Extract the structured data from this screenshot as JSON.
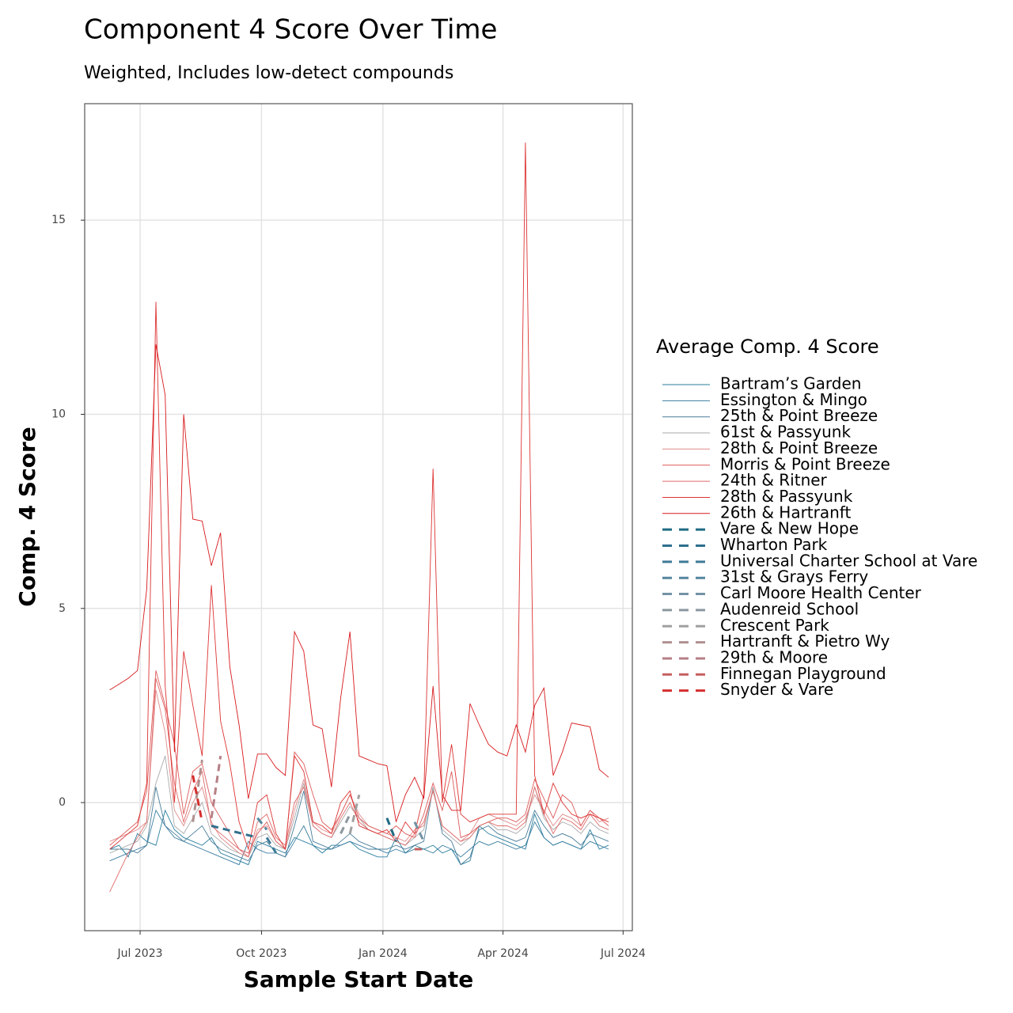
{
  "chart_data": {
    "type": "line",
    "title": "Component 4 Score Over Time",
    "subtitle": "Weighted, Includes low-detect compounds",
    "x_label": "Sample Start Date",
    "y_label": "Comp. 4 Score",
    "legend_title": "Average Comp. 4 Score",
    "legend": "right",
    "grid": true,
    "xlim": [
      "2023-05-20",
      "2024-07-08"
    ],
    "xticks": [
      {
        "value": "2023-07-01",
        "label": "Jul 2023"
      },
      {
        "value": "2023-10-01",
        "label": "Oct 2023"
      },
      {
        "value": "2024-01-01",
        "label": "Jan 2024"
      },
      {
        "value": "2024-04-01",
        "label": "Apr 2024"
      },
      {
        "value": "2024-07-01",
        "label": "Jul 2024"
      }
    ],
    "ylim": [
      -3.3,
      18
    ],
    "yticks": [
      0,
      5,
      10,
      15
    ],
    "x": [
      "2023-06-08",
      "2023-06-15",
      "2023-06-22",
      "2023-06-29",
      "2023-07-06",
      "2023-07-13",
      "2023-07-20",
      "2023-07-27",
      "2023-08-03",
      "2023-08-10",
      "2023-08-17",
      "2023-08-24",
      "2023-08-31",
      "2023-09-07",
      "2023-09-14",
      "2023-09-21",
      "2023-09-28",
      "2023-10-05",
      "2023-10-12",
      "2023-10-19",
      "2023-10-26",
      "2023-11-02",
      "2023-11-09",
      "2023-11-16",
      "2023-11-23",
      "2023-11-30",
      "2023-12-07",
      "2023-12-14",
      "2023-12-21",
      "2023-12-28",
      "2024-01-04",
      "2024-01-11",
      "2024-01-18",
      "2024-01-25",
      "2024-02-01",
      "2024-02-08",
      "2024-02-15",
      "2024-02-22",
      "2024-02-29",
      "2024-03-07",
      "2024-03-14",
      "2024-03-21",
      "2024-03-28",
      "2024-04-04",
      "2024-04-11",
      "2024-04-18",
      "2024-04-25",
      "2024-05-02",
      "2024-05-09",
      "2024-05-16",
      "2024-05-23",
      "2024-05-30",
      "2024-06-06",
      "2024-06-13",
      "2024-06-20"
    ],
    "series": [
      {
        "name": "Bartram’s Garden",
        "color": "#2a7f9e",
        "dashed": false,
        "values": [
          -1.2,
          -1.1,
          -1.4,
          -0.8,
          -1.0,
          -1.1,
          -0.2,
          -0.7,
          -0.9,
          -1.0,
          -1.1,
          -0.9,
          -1.3,
          -1.4,
          -1.5,
          -1.6,
          -1.0,
          -1.1,
          -1.2,
          -1.3,
          -0.9,
          -1.0,
          -1.1,
          -1.3,
          -1.1,
          -1.1,
          -1.0,
          -1.2,
          -1.3,
          -1.4,
          -1.4,
          -0.9,
          -1.3,
          -1.1,
          -1.2,
          -1.1,
          -1.3,
          -1.2,
          -1.6,
          -1.5,
          -0.6,
          -0.8,
          -0.9,
          -1.0,
          -1.1,
          -1.2,
          -0.3,
          -0.9,
          -1.1,
          -1.0,
          -1.1,
          -1.2,
          -0.7,
          -1.2,
          -1.1
        ]
      },
      {
        "name": "Essington & Mingo",
        "color": "#3b7ea1",
        "dashed": false,
        "values": [
          -1.5,
          -1.4,
          -1.3,
          -1.2,
          -1.1,
          -0.2,
          -0.6,
          -0.9,
          -1.0,
          -1.1,
          -1.2,
          -1.3,
          -1.4,
          -1.5,
          -1.6,
          -1.0,
          -1.2,
          -1.3,
          -1.3,
          -1.4,
          -1.0,
          -0.6,
          -1.1,
          -1.2,
          -1.2,
          -1.1,
          -1.0,
          -1.1,
          -1.2,
          -1.2,
          -1.3,
          -1.2,
          -1.3,
          -1.2,
          -1.2,
          -1.3,
          -1.1,
          -1.2,
          -1.4,
          -1.2,
          -1.0,
          -1.1,
          -1.0,
          -1.1,
          -1.2,
          -1.1,
          -0.5,
          -0.9,
          -1.1,
          -1.0,
          -1.1,
          -1.2,
          -1.0,
          -1.1,
          -1.2
        ]
      },
      {
        "name": "25th & Point Breeze",
        "color": "#4a7d9a",
        "dashed": false,
        "values": [
          -1.2,
          -1.2,
          -1.2,
          -1.3,
          -1.1,
          0.4,
          -0.6,
          -0.8,
          -1.0,
          -0.8,
          -0.6,
          -1.0,
          -1.2,
          -1.3,
          -1.4,
          -1.5,
          -1.1,
          -1.0,
          -1.3,
          -1.4,
          -0.6,
          0.3,
          -1.0,
          -1.1,
          -1.2,
          -1.0,
          -0.8,
          -1.0,
          -1.1,
          -1.2,
          -1.2,
          -1.1,
          -1.2,
          -1.1,
          -1.0,
          0.4,
          -0.8,
          -1.0,
          -1.6,
          -1.4,
          -0.7,
          -0.6,
          -0.8,
          -0.9,
          -1.0,
          -0.9,
          -0.2,
          -0.6,
          -0.9,
          -0.8,
          -0.9,
          -1.1,
          -0.8,
          -0.9,
          -1.0
        ]
      },
      {
        "name": "61st & Passyunk",
        "color": "#aaaaaa",
        "dashed": false,
        "values": [
          -1.3,
          -1.2,
          -1.1,
          -1.0,
          -0.6,
          0.5,
          1.2,
          -0.6,
          -0.8,
          -0.4,
          0.0,
          -0.8,
          -1.0,
          -1.2,
          -1.3,
          -1.4,
          -0.9,
          -0.8,
          -1.1,
          -1.2,
          -0.4,
          0.5,
          -0.6,
          -0.8,
          -0.9,
          -0.5,
          -0.1,
          -0.4,
          -0.7,
          -0.8,
          -0.9,
          -1.0,
          -1.1,
          -0.9,
          -0.7,
          0.4,
          -0.7,
          -0.9,
          -1.1,
          -0.9,
          -0.6,
          -0.5,
          -0.7,
          -0.7,
          -0.8,
          -0.6,
          0.4,
          -0.4,
          -0.7,
          -0.5,
          -0.6,
          -0.8,
          -0.5,
          -0.7,
          -0.8
        ]
      },
      {
        "name": "28th & Point Breeze",
        "color": "#e08a8a",
        "dashed": false,
        "values": [
          -1.0,
          -0.9,
          -0.8,
          -0.7,
          -0.5,
          2.9,
          1.8,
          -0.2,
          -0.6,
          0.0,
          0.4,
          -0.5,
          -0.9,
          -1.1,
          -1.3,
          -1.4,
          -0.7,
          -0.6,
          -1.0,
          -1.2,
          -0.2,
          0.6,
          -0.5,
          -0.7,
          -0.8,
          -0.3,
          0.2,
          -0.3,
          -0.6,
          -0.7,
          -0.8,
          -0.9,
          -1.0,
          -0.7,
          -0.6,
          0.3,
          -0.6,
          -0.8,
          -1.0,
          -0.8,
          -0.4,
          -0.3,
          -0.4,
          -0.5,
          -0.6,
          -0.4,
          0.2,
          -0.2,
          -0.6,
          -0.3,
          -0.4,
          -0.6,
          -0.2,
          -0.5,
          -0.4
        ]
      },
      {
        "name": "Morris & Point Breeze",
        "color": "#de5a5a",
        "dashed": false,
        "values": [
          -1.1,
          -0.9,
          -0.7,
          -0.5,
          0.3,
          3.4,
          2.5,
          1.5,
          -0.3,
          0.8,
          1.0,
          0.0,
          -0.4,
          -0.8,
          -1.2,
          -1.3,
          -0.8,
          -0.5,
          -1.0,
          -1.2,
          1.3,
          1.0,
          0.2,
          -0.5,
          -0.7,
          -0.3,
          0.2,
          -0.4,
          -0.6,
          -0.7,
          -0.8,
          -0.6,
          -0.8,
          -0.9,
          -0.3,
          0.5,
          -0.2,
          0.8,
          -0.9,
          -0.8,
          -0.6,
          -0.5,
          -0.4,
          -0.4,
          -0.5,
          -0.3,
          0.6,
          0.1,
          -0.4,
          0.2,
          0.0,
          -0.6,
          -0.2,
          -0.4,
          -0.6
        ]
      },
      {
        "name": "24th & Ritner",
        "color": "#e06a6a",
        "dashed": false,
        "values": [
          -2.3,
          -1.8,
          -1.3,
          -0.9,
          -0.5,
          3.2,
          2.4,
          0.5,
          -0.5,
          0.3,
          0.8,
          -0.6,
          -0.8,
          -1.0,
          -1.2,
          -1.4,
          -0.5,
          -0.3,
          -0.9,
          -1.1,
          0.0,
          0.4,
          -0.6,
          -0.8,
          -0.9,
          -0.4,
          0.0,
          -0.5,
          -0.7,
          -0.8,
          -0.9,
          -1.0,
          -1.1,
          -0.8,
          -0.5,
          0.3,
          -0.6,
          -0.8,
          -1.0,
          -0.9,
          -0.6,
          -0.5,
          -0.6,
          -0.6,
          -0.7,
          -0.5,
          0.4,
          -0.3,
          -0.8,
          -0.4,
          -0.5,
          -0.7,
          -0.3,
          -0.6,
          -0.7
        ]
      },
      {
        "name": "28th & Passyunk",
        "color": "#dd3333",
        "dashed": false,
        "values": [
          -1.2,
          -1.0,
          -0.8,
          -0.6,
          0.5,
          12.9,
          3.0,
          0.0,
          3.9,
          2.5,
          1.2,
          5.6,
          2.1,
          1.0,
          -0.5,
          -1.2,
          0.0,
          0.2,
          -0.8,
          -1.2,
          1.2,
          0.8,
          -0.5,
          -0.6,
          -0.8,
          0.0,
          0.3,
          -0.6,
          -0.7,
          -0.8,
          -0.7,
          -1.0,
          -0.5,
          -0.8,
          0.2,
          8.6,
          0.0,
          1.5,
          -0.3,
          -0.5,
          -0.4,
          -0.3,
          -0.3,
          -0.3,
          -0.3,
          17.0,
          0.7,
          -0.3,
          0.5,
          0.0,
          -0.3,
          -0.4,
          -0.3,
          -0.4,
          -0.5
        ]
      },
      {
        "name": "26th & Hartranft",
        "color": "#d7191c",
        "dashed": false,
        "values": [
          2.9,
          3.05,
          3.2,
          3.4,
          5.5,
          11.8,
          10.5,
          1.3,
          10.0,
          7.3,
          7.25,
          6.1,
          6.95,
          3.5,
          2.0,
          0.1,
          1.25,
          1.25,
          0.9,
          0.7,
          4.4,
          3.9,
          2.0,
          1.9,
          0.4,
          2.7,
          4.4,
          1.2,
          1.1,
          1.0,
          0.95,
          -0.5,
          0.2,
          0.65,
          0.1,
          3.0,
          0.2,
          -0.2,
          -0.2,
          2.55,
          2.0,
          1.5,
          1.3,
          1.2,
          2.0,
          1.3,
          2.5,
          2.95,
          0.7,
          1.3,
          2.05,
          2.0,
          1.95,
          0.85,
          0.65
        ]
      },
      {
        "name": "Vare & New Hope",
        "color": "#1f6b82",
        "dashed": true,
        "x": [
          "2024-01-04",
          "2024-01-11"
        ],
        "values": [
          -0.4,
          -1.0
        ]
      },
      {
        "name": "Wharton Park",
        "color": "#2f6f8e",
        "dashed": true,
        "x": [
          "2023-08-24",
          "2023-09-28"
        ],
        "values": [
          -0.6,
          -0.9
        ]
      },
      {
        "name": "Universal Charter School at Vare",
        "color": "#3f7b98",
        "dashed": true,
        "x": [
          "2023-10-05",
          "2023-10-12"
        ],
        "values": [
          -0.9,
          -1.3
        ]
      },
      {
        "name": "31st & Grays Ferry",
        "color": "#55869f",
        "dashed": true,
        "x": [
          "2023-09-28",
          "2023-10-05"
        ],
        "values": [
          -0.4,
          -0.7
        ]
      },
      {
        "name": "Carl Moore Health Center",
        "color": "#7393a5",
        "dashed": true,
        "x": [
          "2024-01-25",
          "2024-02-01"
        ],
        "values": [
          -0.5,
          -1.0
        ]
      },
      {
        "name": "Audenreid School",
        "color": "#8c979f",
        "dashed": true,
        "x": [
          "2023-11-30",
          "2023-12-07"
        ],
        "values": [
          -0.8,
          -0.3
        ]
      },
      {
        "name": "Crescent Park",
        "color": "#a0a0a0",
        "dashed": true,
        "x": [
          "2023-12-07",
          "2023-12-14"
        ],
        "values": [
          -0.8,
          0.2
        ]
      },
      {
        "name": "Hartranft & Pietro Wy",
        "color": "#b09090",
        "dashed": true,
        "x": [
          "2023-08-10",
          "2023-08-17"
        ],
        "values": [
          -0.5,
          1.1
        ]
      },
      {
        "name": "29th & Moore",
        "color": "#b77f85",
        "dashed": true,
        "x": [
          "2023-08-24",
          "2023-08-31"
        ],
        "values": [
          -0.4,
          1.2
        ]
      },
      {
        "name": "Finnegan Playground",
        "color": "#c55f5f",
        "dashed": true,
        "x": [
          "2024-01-25",
          "2024-02-01"
        ],
        "values": [
          -1.2,
          -1.2
        ]
      },
      {
        "name": "Snyder & Vare",
        "color": "#d52f2f",
        "dashed": true,
        "x": [
          "2023-08-10",
          "2023-08-17"
        ],
        "values": [
          0.7,
          -0.5
        ]
      }
    ]
  }
}
